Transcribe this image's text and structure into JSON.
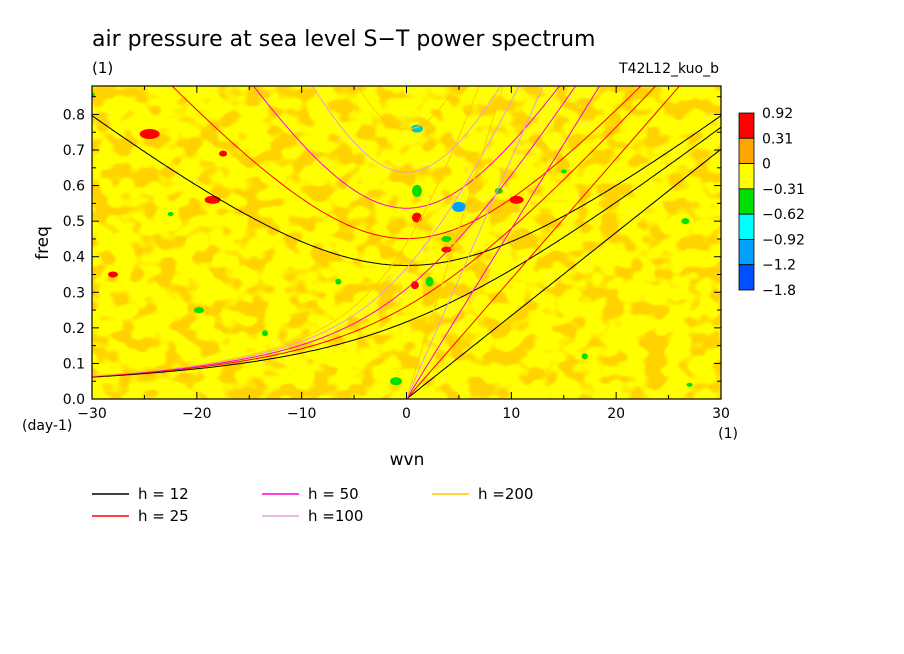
{
  "chart_data": {
    "type": "heatmap",
    "title": "air pressure at sea level S−T power spectrum",
    "subtitle_left": "(1)",
    "subtitle_right": "T42L12_kuo_b",
    "xlabel": "wvn",
    "xunit": "(1)",
    "ylabel": "freq",
    "yunit": "(day-1)",
    "xlim": [
      -30,
      30
    ],
    "ylim": [
      0,
      0.88
    ],
    "x_ticks": [
      "−30",
      "−20",
      "−10",
      "0",
      "10",
      "20",
      "30"
    ],
    "x_tick_values": [
      -30,
      -20,
      -10,
      0,
      10,
      20,
      30
    ],
    "y_ticks": [
      "0.0",
      "0.1",
      "0.2",
      "0.3",
      "0.4",
      "0.5",
      "0.6",
      "0.7",
      "0.8"
    ],
    "y_tick_values": [
      0,
      0.1,
      0.2,
      0.3,
      0.4,
      0.5,
      0.6,
      0.7,
      0.8
    ],
    "colorbar": {
      "levels": [
        "0.92",
        "0.31",
        "0",
        "−0.31",
        "−0.62",
        "−0.92",
        "−1.2",
        "−1.8"
      ],
      "colors": [
        "#ff0000",
        "#ffa500",
        "#ffff00",
        "#00e000",
        "#00ffff",
        "#00a0ff",
        "#0050ff"
      ]
    },
    "series": [
      {
        "name": "h = 12",
        "color": "#000000"
      },
      {
        "name": "h = 25",
        "color": "#ff0000"
      },
      {
        "name": "h = 50",
        "color": "#ff00cc"
      },
      {
        "name": "h =100",
        "color": "#dda0dd"
      },
      {
        "name": "h =200",
        "color": "#ffcc00"
      }
    ],
    "grid": false
  }
}
